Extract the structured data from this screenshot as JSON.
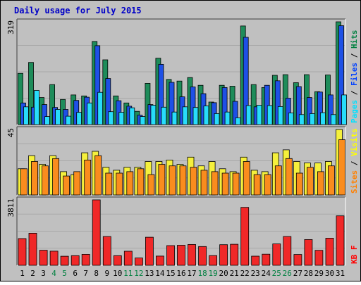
{
  "chart_data": [
    {
      "type": "bar",
      "title": "Daily usage for July 2015",
      "panel": "hits-files-pages",
      "ymax_label": "319",
      "right_legend": [
        {
          "text": "Pages",
          "color": "#00e0ff"
        },
        {
          "text": "Files",
          "color": "#0040ff"
        },
        {
          "text": "Hits",
          "color": "#008040"
        }
      ],
      "categories": [
        "1",
        "2",
        "3",
        "4",
        "5",
        "6",
        "7",
        "8",
        "9",
        "10",
        "11",
        "12",
        "13",
        "14",
        "15",
        "16",
        "17",
        "18",
        "19",
        "20",
        "21",
        "22",
        "23",
        "24",
        "25",
        "26",
        "27",
        "28",
        "29",
        "30",
        "31"
      ],
      "weekend_days": [
        "4",
        "5",
        "11",
        "12",
        "18",
        "19",
        "25",
        "26"
      ],
      "ylim": [
        0,
        319
      ],
      "series": [
        {
          "name": "Hits",
          "color": "#1e8c5a",
          "values": [
            159,
            193,
            84,
            124,
            78,
            92,
            89,
            258,
            201,
            89,
            67,
            41,
            128,
            206,
            140,
            135,
            146,
            122,
            70,
            122,
            119,
            306,
            124,
            115,
            153,
            155,
            130,
            155,
            102,
            154,
            319
          ]
        },
        {
          "name": "Files",
          "color": "#1e50e6",
          "values": [
            67,
            54,
            62,
            53,
            47,
            75,
            85,
            245,
            143,
            74,
            57,
            29,
            62,
            187,
            131,
            86,
            117,
            96,
            68,
            115,
            72,
            271,
            55,
            122,
            136,
            82,
            118,
            84,
            101,
            92,
            307
          ]
        },
        {
          "name": "Pages",
          "color": "#28dcfa",
          "values": [
            55,
            106,
            25,
            47,
            26,
            38,
            67,
            100,
            40,
            38,
            52,
            25,
            60,
            54,
            39,
            55,
            53,
            58,
            34,
            39,
            21,
            59,
            60,
            59,
            56,
            36,
            31,
            34,
            37,
            31,
            92
          ]
        }
      ]
    },
    {
      "type": "bar",
      "panel": "visits-sites",
      "ymax_label": "45",
      "right_legend": [
        {
          "text": "Sites",
          "color": "#ff8000"
        },
        {
          "text": "Visits",
          "color": "#ffff00"
        }
      ],
      "ylim": [
        0,
        45
      ],
      "series": [
        {
          "name": "Visits",
          "color": "#f5f03c",
          "values": [
            18,
            27,
            21,
            27,
            16,
            14,
            29,
            30,
            19,
            17,
            19,
            19,
            23,
            23,
            24,
            21,
            26,
            20,
            23,
            18,
            16,
            26,
            17,
            16,
            29,
            31,
            23,
            22,
            22,
            23,
            45
          ]
        },
        {
          "name": "Sites",
          "color": "#fa8c1e",
          "values": [
            18,
            23,
            20,
            25,
            13,
            16,
            24,
            27,
            15,
            15,
            16,
            18,
            14,
            21,
            20,
            20,
            19,
            17,
            16,
            15,
            15,
            23,
            14,
            14,
            20,
            25,
            15,
            19,
            16,
            20,
            38
          ]
        }
      ]
    },
    {
      "type": "bar",
      "panel": "kbytes",
      "ymax_label": "3811",
      "right_legend": [
        {
          "text": "KB F",
          "color": "#ff0000"
        }
      ],
      "ylim": [
        0,
        3811
      ],
      "series": [
        {
          "name": "KB F",
          "color": "#f02828",
          "values": [
            1557,
            1870,
            877,
            824,
            528,
            562,
            640,
            3811,
            1676,
            562,
            820,
            428,
            1633,
            538,
            1146,
            1167,
            1212,
            1093,
            567,
            1199,
            1227,
            3373,
            534,
            646,
            1246,
            1677,
            631,
            1500,
            873,
            1581,
            2880
          ]
        }
      ]
    }
  ]
}
